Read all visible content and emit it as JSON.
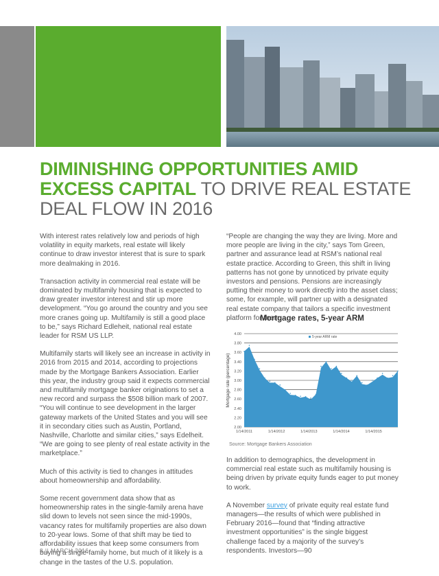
{
  "colors": {
    "green": "#5aac2e",
    "gray": "#8a8a8a",
    "area": "#3e97cc"
  },
  "headline": {
    "bold_part": "DIMINISHING OPPORTUNITIES AMID EXCESS CAPITAL",
    "light_part": "TO DRIVE REAL ESTATE DEAL FLOW IN 2016"
  },
  "left_column": [
    "With interest rates relatively low and periods of high volatility in equity markets, real estate will likely continue to draw investor interest that is sure to spark more dealmaking in 2016.",
    "Transaction activity in commercial real estate will be dominated by multifamily housing that is expected to draw greater investor interest and stir up more development. “You go around the country and you see more cranes going up. Multifamily is still a good place to be,” says Richard Edleheit, national real estate leader for RSM US LLP.",
    "Multifamily starts will likely see an increase in activity in 2016 from 2015 and 2014, according to projections made by the Mortgage Bankers Association. Earlier this year, the industry group said it expects commercial and multifamily mortgage banker originations to set a new record and surpass the $508 billion mark of 2007. “You will continue to see development in the larger gateway markets of the United States and you will see it in secondary cities such as Austin, Portland, Nashville, Charlotte and similar cities,” says Edelheit. “We are going to see plenty of real estate activity in the marketplace.”",
    "Much of this activity is tied to changes in attitudes about homeownership and affordability.",
    "Some recent government data show that as homeownership rates in the single-family arena have slid down to levels not seen since the mid-1990s, vacancy rates for multifamily properties are also down to 20-year lows. Some of that shift may be tied to affordability issues that keep some consumers from buying a single-family home, but much of it likely is a change in the tastes of the U.S. population."
  ],
  "right_top": "“People are changing the way they are living. More and more people are living in the city,” says Tom Green, partner and assurance lead at RSM’s national real estate practice. According to Green, this shift in living patterns has not gone by unnoticed by private equity investors and pensions. Pensions are increasingly putting their money to work directly into the asset class; some, for example, will partner up with a designated real estate company that tailors a specific investment platform for them.",
  "right_bottom": {
    "p1": "In addition to demographics, the development in commercial real estate such as multifamily housing is being driven by private equity funds eager to put money to work.",
    "p2_before": "A November ",
    "p2_link": "survey",
    "p2_after": " of private equity real estate fund managers—the results of which were published in February 2016—found that “finding attractive investment opportunities” is the single biggest challenge faced by a majority of the survey’s respondents. Investors—90"
  },
  "chart_data": {
    "type": "area",
    "title": "Mortgage rates, 5-year ARM",
    "ylabel": "Mortgage rate (percentage)",
    "xlabel": "",
    "ylim": [
      2.0,
      4.0
    ],
    "yticks": [
      "2.00",
      "2.20",
      "2.40",
      "2.60",
      "2.80",
      "3.00",
      "3.20",
      "3.40",
      "3.60",
      "3.80",
      "4.00"
    ],
    "xticks": [
      "1/14/2011",
      "1/14/2012",
      "1/14/2013",
      "1/14/2014",
      "1/14/2015"
    ],
    "legend": "5-year ARM rate",
    "legend_position": "top-right",
    "grid": true,
    "source": "Source: Mortgage Bankers Association",
    "x": [
      "2011-01",
      "2011-03",
      "2011-05",
      "2011-07",
      "2011-09",
      "2011-11",
      "2012-01",
      "2012-03",
      "2012-05",
      "2012-07",
      "2012-09",
      "2012-11",
      "2013-01",
      "2013-03",
      "2013-05",
      "2013-07",
      "2013-09",
      "2013-11",
      "2014-01",
      "2014-03",
      "2014-05",
      "2014-07",
      "2014-09",
      "2014-11",
      "2015-01",
      "2015-03",
      "2015-05",
      "2015-07",
      "2015-09",
      "2015-11",
      "2016-01"
    ],
    "values": [
      3.62,
      3.75,
      3.45,
      3.25,
      3.05,
      2.98,
      2.95,
      2.9,
      2.8,
      2.72,
      2.68,
      2.66,
      2.65,
      2.62,
      2.7,
      3.3,
      3.4,
      3.25,
      3.3,
      3.15,
      3.05,
      3.0,
      3.1,
      2.95,
      2.9,
      3.0,
      3.05,
      3.15,
      3.05,
      3.1,
      3.2
    ]
  },
  "footer": {
    "page": "8",
    "sep": "||",
    "date": "MARCH 2016"
  }
}
